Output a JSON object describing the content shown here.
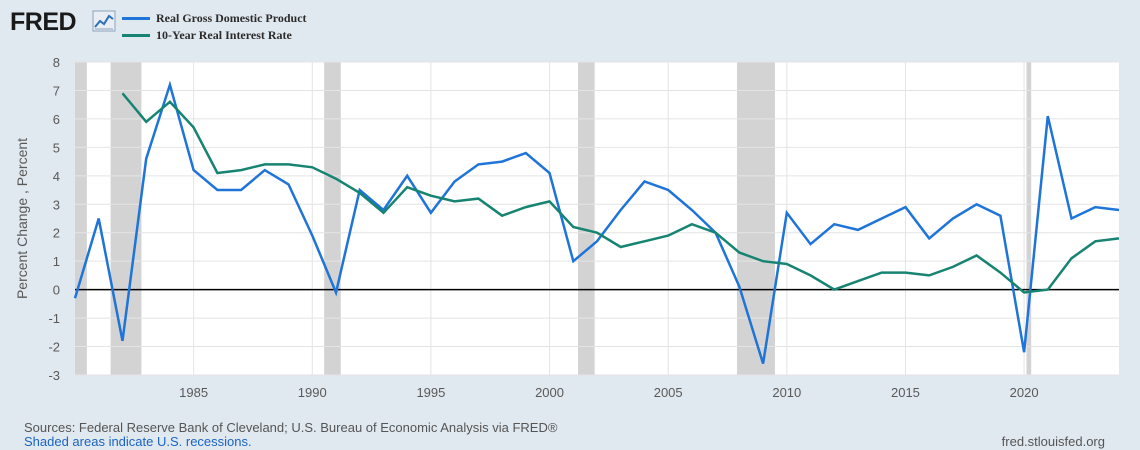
{
  "header": {
    "logo": "FRED",
    "graph_icon": "chart-line-icon"
  },
  "colors": {
    "series_gdp": "#1e74d8",
    "series_rate": "#178472",
    "recession": "#d3d3d3",
    "zero_line": "#000000",
    "plot_bg": "#ffffff",
    "page_bg": "#e1e9f0",
    "grid": "#e4e4e4",
    "tick_text": "#595959"
  },
  "chart_data": {
    "type": "line",
    "ylabel": "Percent Change , Percent",
    "xlim": [
      1980,
      2024
    ],
    "ylim": [
      -3,
      8
    ],
    "yticks": [
      -3,
      -2,
      -1,
      0,
      1,
      2,
      3,
      4,
      5,
      6,
      7,
      8
    ],
    "ytick_labels": [
      "-3",
      "-2",
      "-1",
      "0",
      "1",
      "2",
      "3",
      "4",
      "5",
      "6",
      "7",
      "8"
    ],
    "xticks": [
      1985,
      1990,
      1995,
      2000,
      2005,
      2010,
      2015,
      2020
    ],
    "xtick_labels": [
      "1985",
      "1990",
      "1995",
      "2000",
      "2005",
      "2010",
      "2015",
      "2020"
    ],
    "zero_line": true,
    "recessions": [
      [
        1980.0,
        1980.5
      ],
      [
        1981.5,
        1982.8
      ],
      [
        1990.5,
        1991.2
      ],
      [
        2001.2,
        2001.9
      ],
      [
        2007.9,
        2009.5
      ],
      [
        2020.1,
        2020.3
      ]
    ],
    "series": [
      {
        "name": "Real Gross Domestic Product",
        "x": [
          1980,
          1981,
          1982,
          1983,
          1984,
          1985,
          1986,
          1987,
          1988,
          1989,
          1990,
          1991,
          1992,
          1993,
          1994,
          1995,
          1996,
          1997,
          1998,
          1999,
          2000,
          2001,
          2002,
          2003,
          2004,
          2005,
          2006,
          2007,
          2008,
          2009,
          2010,
          2011,
          2012,
          2013,
          2014,
          2015,
          2016,
          2017,
          2018,
          2019,
          2020,
          2021,
          2022,
          2023,
          2024
        ],
        "values": [
          -0.3,
          2.5,
          -1.8,
          4.6,
          7.2,
          4.2,
          3.5,
          3.5,
          4.2,
          3.7,
          1.9,
          -0.1,
          3.5,
          2.8,
          4.0,
          2.7,
          3.8,
          4.4,
          4.5,
          4.8,
          4.1,
          1.0,
          1.7,
          2.8,
          3.8,
          3.5,
          2.8,
          2.0,
          0.1,
          -2.6,
          2.7,
          1.6,
          2.3,
          2.1,
          2.5,
          2.9,
          1.8,
          2.5,
          3.0,
          2.6,
          -2.2,
          6.1,
          2.5,
          2.9,
          2.8
        ]
      },
      {
        "name": "10-Year Real Interest Rate",
        "x": [
          1982,
          1983,
          1984,
          1985,
          1986,
          1987,
          1988,
          1989,
          1990,
          1991,
          1992,
          1993,
          1994,
          1995,
          1996,
          1997,
          1998,
          1999,
          2000,
          2001,
          2002,
          2003,
          2004,
          2005,
          2006,
          2007,
          2008,
          2009,
          2010,
          2011,
          2012,
          2013,
          2014,
          2015,
          2016,
          2017,
          2018,
          2019,
          2020,
          2021,
          2022,
          2023,
          2024
        ],
        "values": [
          6.9,
          5.9,
          6.6,
          5.7,
          4.1,
          4.2,
          4.4,
          4.4,
          4.3,
          3.9,
          3.4,
          2.7,
          3.6,
          3.3,
          3.1,
          3.2,
          2.6,
          2.9,
          3.1,
          2.2,
          2.0,
          1.5,
          1.7,
          1.9,
          2.3,
          2.0,
          1.3,
          1.0,
          0.9,
          0.5,
          0.0,
          0.3,
          0.6,
          0.6,
          0.5,
          0.8,
          1.2,
          0.6,
          -0.1,
          0.0,
          1.1,
          1.7,
          1.8
        ]
      }
    ]
  },
  "footer": {
    "sources": "Sources: Federal Reserve Bank of Cleveland; U.S. Bureau of Economic Analysis via FRED®",
    "shaded_note": "Shaded areas indicate U.S. recessions.",
    "url": "fred.stlouisfed.org"
  }
}
